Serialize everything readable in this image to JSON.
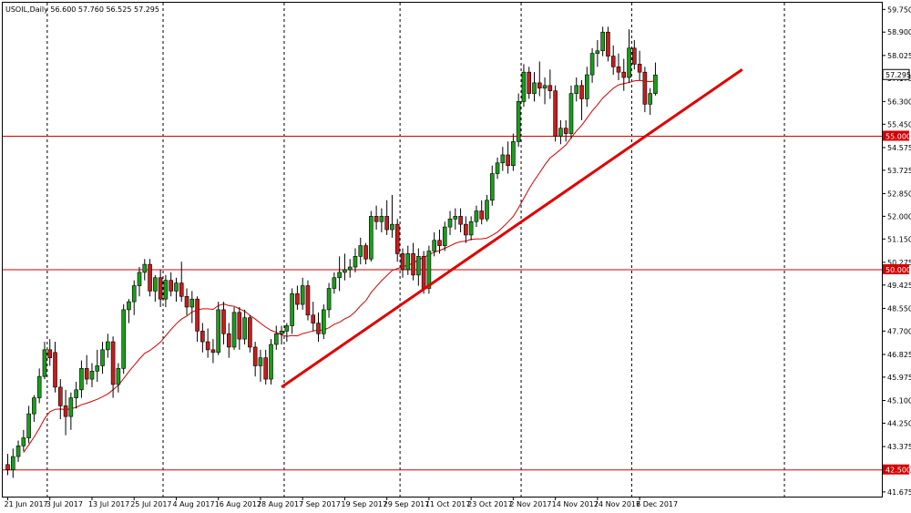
{
  "colors": {
    "background": "#ffffff",
    "bull_candle": "#1a9e1a",
    "bear_candle": "#c41e1e",
    "wick": "#000000",
    "moving_average": "#d40000",
    "trendline": "#e00000",
    "horizontal_level": "#d40000",
    "price_box_current": "#ffffff",
    "price_box_level": "#d40000",
    "grid": "#000000"
  },
  "chart_data": {
    "type": "candlestick",
    "title": "USOIL,Daily  56.600 57.760 56.525 57.295",
    "symbol": "USOIL",
    "timeframe": "Daily",
    "ohlc_header": {
      "open": "56.600",
      "high": "57.760",
      "low": "56.525",
      "close": "57.295"
    },
    "ylim": [
      41.5,
      60.0
    ],
    "y_ticks": [
      "59.750",
      "58.900",
      "58.025",
      "57.175",
      "56.300",
      "55.450",
      "54.575",
      "53.725",
      "52.850",
      "52.000",
      "51.150",
      "50.275",
      "49.425",
      "48.550",
      "47.700",
      "46.825",
      "45.975",
      "45.100",
      "44.250",
      "43.375",
      "42.500",
      "41.675"
    ],
    "y_tick_values": [
      59.75,
      58.9,
      58.025,
      57.175,
      56.3,
      55.45,
      54.575,
      53.725,
      52.85,
      52.0,
      51.15,
      50.275,
      49.425,
      48.55,
      47.7,
      46.825,
      45.975,
      45.1,
      44.25,
      43.375,
      42.5,
      41.675
    ],
    "x_labels": [
      "21 Jun 2017",
      "3 Jul 2017",
      "13 Jul 2017",
      "25 Jul 2017",
      "4 Aug 2017",
      "16 Aug 2017",
      "28 Aug 2017",
      "7 Sep 2017",
      "19 Sep 2017",
      "29 Sep 2017",
      "11 Oct 2017",
      "23 Oct 2017",
      "2 Nov 2017",
      "14 Nov 2017",
      "24 Nov 2017",
      "6 Dec 2017"
    ],
    "x_label_bars": [
      0,
      8,
      16,
      24,
      32,
      40,
      48,
      56,
      64,
      72,
      80,
      88,
      96,
      104,
      112,
      120
    ],
    "period_separator_bars": [
      7.5,
      29.5,
      52.5,
      74.5,
      97.5,
      118.5,
      147.5
    ],
    "horizontal_levels": [
      {
        "value": 55.0,
        "label": "55.000"
      },
      {
        "value": 50.0,
        "label": "50.000"
      },
      {
        "value": 42.5,
        "label": "42.500"
      }
    ],
    "current_price_label": "57.295",
    "current_price": 57.295,
    "trendline": {
      "start": {
        "bar": 52,
        "price": 45.6
      },
      "end": {
        "bar": 139.5,
        "price": 57.5
      }
    },
    "moving_average_period": 20,
    "candles": [
      [
        42.7,
        43.1,
        42.3,
        42.5
      ],
      [
        42.5,
        43.3,
        42.2,
        43.0
      ],
      [
        43.0,
        43.6,
        42.8,
        43.4
      ],
      [
        43.4,
        44.0,
        43.2,
        43.7
      ],
      [
        43.7,
        44.9,
        43.5,
        44.6
      ],
      [
        44.6,
        45.3,
        44.3,
        45.2
      ],
      [
        45.2,
        46.3,
        45.0,
        46.0
      ],
      [
        46.0,
        47.3,
        45.9,
        47.0
      ],
      [
        47.0,
        47.4,
        46.4,
        46.7
      ],
      [
        46.9,
        47.3,
        45.4,
        45.6
      ],
      [
        45.6,
        45.9,
        44.4,
        44.9
      ],
      [
        44.9,
        45.5,
        43.8,
        44.5
      ],
      [
        44.5,
        45.4,
        44.0,
        45.2
      ],
      [
        45.2,
        45.8,
        44.8,
        45.5
      ],
      [
        45.5,
        46.6,
        45.2,
        46.3
      ],
      [
        46.3,
        46.8,
        45.7,
        45.9
      ],
      [
        45.9,
        46.5,
        45.6,
        46.2
      ],
      [
        46.2,
        47.0,
        45.8,
        46.4
      ],
      [
        46.4,
        47.3,
        46.1,
        47.0
      ],
      [
        47.0,
        47.6,
        46.7,
        47.3
      ],
      [
        47.3,
        47.5,
        45.2,
        45.7
      ],
      [
        45.7,
        46.5,
        45.4,
        46.3
      ],
      [
        46.3,
        48.7,
        46.1,
        48.5
      ],
      [
        48.5,
        48.9,
        48.0,
        48.8
      ],
      [
        48.8,
        49.6,
        48.3,
        49.4
      ],
      [
        49.4,
        50.1,
        49.0,
        49.9
      ],
      [
        49.9,
        50.4,
        49.6,
        50.2
      ],
      [
        50.2,
        50.4,
        49.0,
        49.2
      ],
      [
        49.2,
        49.8,
        48.8,
        49.7
      ],
      [
        49.7,
        50.0,
        48.6,
        48.9
      ],
      [
        48.9,
        49.8,
        48.6,
        49.6
      ],
      [
        49.6,
        49.9,
        49.0,
        49.2
      ],
      [
        49.2,
        49.7,
        48.8,
        49.5
      ],
      [
        49.5,
        50.3,
        48.8,
        49.0
      ],
      [
        49.0,
        49.3,
        48.3,
        48.6
      ],
      [
        48.6,
        49.2,
        48.0,
        48.9
      ],
      [
        48.9,
        49.0,
        47.3,
        47.7
      ],
      [
        47.7,
        48.0,
        46.9,
        47.3
      ],
      [
        47.3,
        47.8,
        46.7,
        47.0
      ],
      [
        47.0,
        47.4,
        46.5,
        46.9
      ],
      [
        46.9,
        48.8,
        46.8,
        48.5
      ],
      [
        48.5,
        48.8,
        47.2,
        47.6
      ],
      [
        47.6,
        48.0,
        46.7,
        47.1
      ],
      [
        47.1,
        48.6,
        47.0,
        48.4
      ],
      [
        48.4,
        48.6,
        47.0,
        47.4
      ],
      [
        47.4,
        48.5,
        47.2,
        48.2
      ],
      [
        48.2,
        48.3,
        46.9,
        47.1
      ],
      [
        47.1,
        47.3,
        46.0,
        46.4
      ],
      [
        46.4,
        47.0,
        45.8,
        46.7
      ],
      [
        46.7,
        47.0,
        45.7,
        45.9
      ],
      [
        45.9,
        47.4,
        45.7,
        47.2
      ],
      [
        47.2,
        47.9,
        47.0,
        47.6
      ],
      [
        47.6,
        47.9,
        47.2,
        47.7
      ],
      [
        47.7,
        48.0,
        47.3,
        47.9
      ],
      [
        47.9,
        49.3,
        47.6,
        49.1
      ],
      [
        49.1,
        49.4,
        48.5,
        48.7
      ],
      [
        48.7,
        49.7,
        48.5,
        49.4
      ],
      [
        49.4,
        49.6,
        48.1,
        48.3
      ],
      [
        48.3,
        48.8,
        47.7,
        48.0
      ],
      [
        48.0,
        48.4,
        47.3,
        47.6
      ],
      [
        47.6,
        48.7,
        47.4,
        48.5
      ],
      [
        48.5,
        49.5,
        48.2,
        49.3
      ],
      [
        49.3,
        49.9,
        49.1,
        49.7
      ],
      [
        49.7,
        50.5,
        49.2,
        49.9
      ],
      [
        49.9,
        50.6,
        49.6,
        50.0
      ],
      [
        50.0,
        50.4,
        49.7,
        50.1
      ],
      [
        50.1,
        50.8,
        49.9,
        50.5
      ],
      [
        50.5,
        51.2,
        50.2,
        50.9
      ],
      [
        50.9,
        51.0,
        50.2,
        50.4
      ],
      [
        50.4,
        52.2,
        50.3,
        52.0
      ],
      [
        52.0,
        52.4,
        51.5,
        51.8
      ],
      [
        51.8,
        52.3,
        51.4,
        52.0
      ],
      [
        52.0,
        52.6,
        51.3,
        51.5
      ],
      [
        51.5,
        52.8,
        51.2,
        51.7
      ],
      [
        51.7,
        51.9,
        50.3,
        50.6
      ],
      [
        50.6,
        50.8,
        49.7,
        50.0
      ],
      [
        50.0,
        50.9,
        49.8,
        50.6
      ],
      [
        50.6,
        51.0,
        49.6,
        49.8
      ],
      [
        49.8,
        50.8,
        49.4,
        50.5
      ],
      [
        50.5,
        50.7,
        49.1,
        49.3
      ],
      [
        49.3,
        50.9,
        49.1,
        50.7
      ],
      [
        50.7,
        51.4,
        50.5,
        51.1
      ],
      [
        51.1,
        51.5,
        50.6,
        50.9
      ],
      [
        50.9,
        51.8,
        50.7,
        51.6
      ],
      [
        51.6,
        52.2,
        51.3,
        51.9
      ],
      [
        51.9,
        52.3,
        51.5,
        52.0
      ],
      [
        52.0,
        52.3,
        51.4,
        51.7
      ],
      [
        51.7,
        52.0,
        51.0,
        51.3
      ],
      [
        51.3,
        52.0,
        51.1,
        51.8
      ],
      [
        51.8,
        52.4,
        51.6,
        52.2
      ],
      [
        52.2,
        52.6,
        51.7,
        51.9
      ],
      [
        51.9,
        52.8,
        51.8,
        52.6
      ],
      [
        52.6,
        53.9,
        52.4,
        53.6
      ],
      [
        53.6,
        54.2,
        53.4,
        54.0
      ],
      [
        54.0,
        54.6,
        53.7,
        54.3
      ],
      [
        54.3,
        54.8,
        53.6,
        53.9
      ],
      [
        53.9,
        55.1,
        53.7,
        54.8
      ],
      [
        54.8,
        56.6,
        54.6,
        56.3
      ],
      [
        56.3,
        57.7,
        56.1,
        57.4
      ],
      [
        57.4,
        57.6,
        56.4,
        56.6
      ],
      [
        56.6,
        57.4,
        56.3,
        57.0
      ],
      [
        57.0,
        57.8,
        56.5,
        56.8
      ],
      [
        56.8,
        57.2,
        56.2,
        56.9
      ],
      [
        56.9,
        57.5,
        56.4,
        56.7
      ],
      [
        56.7,
        56.9,
        54.8,
        55.0
      ],
      [
        55.0,
        55.6,
        54.7,
        55.3
      ],
      [
        55.3,
        55.6,
        54.8,
        55.1
      ],
      [
        55.1,
        56.9,
        54.9,
        56.6
      ],
      [
        56.6,
        57.2,
        56.3,
        56.9
      ],
      [
        56.9,
        57.1,
        55.6,
        56.4
      ],
      [
        56.4,
        57.6,
        56.1,
        57.3
      ],
      [
        57.3,
        58.3,
        57.0,
        58.1
      ],
      [
        58.1,
        58.6,
        57.6,
        58.2
      ],
      [
        58.2,
        59.1,
        58.0,
        58.9
      ],
      [
        58.9,
        59.1,
        57.8,
        58.0
      ],
      [
        58.0,
        58.4,
        57.3,
        57.6
      ],
      [
        57.6,
        58.1,
        57.1,
        57.4
      ],
      [
        57.4,
        57.9,
        56.7,
        57.2
      ],
      [
        57.2,
        59.0,
        57.0,
        58.3
      ],
      [
        58.3,
        58.6,
        57.5,
        57.7
      ],
      [
        57.7,
        58.2,
        57.1,
        57.4
      ],
      [
        57.4,
        57.6,
        55.9,
        56.2
      ],
      [
        56.2,
        56.8,
        55.8,
        56.6
      ],
      [
        56.6,
        57.76,
        56.525,
        57.295
      ]
    ]
  }
}
